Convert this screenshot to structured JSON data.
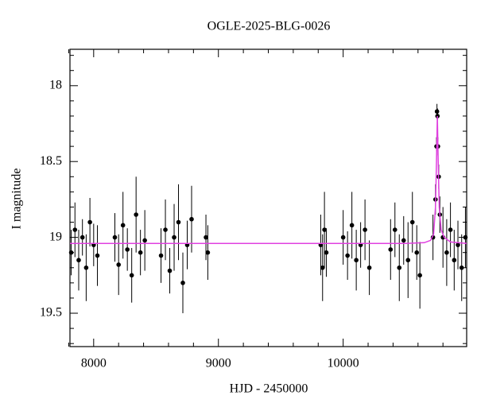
{
  "chart_data": {
    "type": "scatter",
    "title": "OGLE-2025-BLG-0026",
    "xlabel": "HJD - 2450000",
    "ylabel": "I magnitude",
    "xlim": [
      7810,
      10990
    ],
    "ylim": [
      19.72,
      17.76
    ],
    "xticks": [
      8000,
      9000,
      10000
    ],
    "yticks": [
      18,
      18.5,
      19,
      19.5
    ],
    "xminorticks": [
      7800,
      8200,
      8400,
      8600,
      8800,
      9200,
      9400,
      9600,
      9800,
      10200,
      10400,
      10600,
      10800
    ],
    "yminorticks": [
      17.8,
      17.9,
      18.1,
      18.2,
      18.3,
      18.4,
      18.6,
      18.7,
      18.8,
      18.9,
      19.1,
      19.2,
      19.3,
      19.4,
      19.6,
      19.7
    ],
    "series": [
      {
        "color": "#000000",
        "x": [
          7820,
          7850,
          7880,
          7910,
          7940,
          7970,
          8000,
          8030,
          8170,
          8200,
          8235,
          8270,
          8305,
          8340,
          8375,
          8410,
          8540,
          8575,
          8610,
          8645,
          8680,
          8715,
          8750,
          8785,
          8900,
          8915,
          9820,
          9835,
          9850,
          9865,
          10000,
          10035,
          10070,
          10105,
          10140,
          10175,
          10210,
          10380,
          10415,
          10450,
          10485,
          10520,
          10555,
          10590,
          10615,
          10720,
          10740,
          10748,
          10752,
          10756,
          10760,
          10766,
          10775,
          10800,
          10830,
          10860,
          10890,
          10920,
          10950,
          10980
        ],
        "values": [
          19.1,
          18.95,
          19.15,
          19.0,
          19.2,
          18.9,
          19.05,
          19.12,
          19.0,
          19.18,
          18.92,
          19.08,
          19.25,
          18.85,
          19.1,
          19.02,
          19.12,
          18.95,
          19.22,
          19.0,
          18.9,
          19.3,
          19.05,
          18.88,
          19.0,
          19.1,
          19.05,
          19.2,
          18.95,
          19.1,
          19.0,
          19.12,
          18.92,
          19.15,
          19.05,
          18.95,
          19.2,
          19.08,
          18.95,
          19.2,
          19.02,
          19.15,
          18.9,
          19.1,
          19.25,
          19.0,
          18.75,
          18.4,
          18.17,
          18.2,
          18.4,
          18.6,
          18.85,
          19.0,
          19.1,
          18.95,
          19.15,
          19.05,
          19.2,
          19.0
        ],
        "errors": [
          0.15,
          0.18,
          0.2,
          0.12,
          0.22,
          0.16,
          0.14,
          0.2,
          0.16,
          0.2,
          0.22,
          0.14,
          0.18,
          0.25,
          0.15,
          0.2,
          0.18,
          0.2,
          0.15,
          0.22,
          0.25,
          0.2,
          0.16,
          0.22,
          0.15,
          0.18,
          0.2,
          0.22,
          0.25,
          0.16,
          0.18,
          0.16,
          0.22,
          0.2,
          0.15,
          0.2,
          0.18,
          0.2,
          0.18,
          0.22,
          0.16,
          0.25,
          0.2,
          0.18,
          0.22,
          0.15,
          0.1,
          0.06,
          0.05,
          0.05,
          0.06,
          0.08,
          0.12,
          0.2,
          0.22,
          0.18,
          0.2,
          0.16,
          0.22,
          0.2
        ]
      },
      {
        "type": "line",
        "color": "#e040e0",
        "x": [
          7810,
          10500,
          10650,
          10700,
          10725,
          10740,
          10748,
          10755,
          10762,
          10770,
          10785,
          10810,
          10860,
          10990
        ],
        "values": [
          19.04,
          19.04,
          19.035,
          19.02,
          18.98,
          18.8,
          18.5,
          18.2,
          18.5,
          18.8,
          18.95,
          19.0,
          19.03,
          19.04
        ]
      }
    ]
  }
}
